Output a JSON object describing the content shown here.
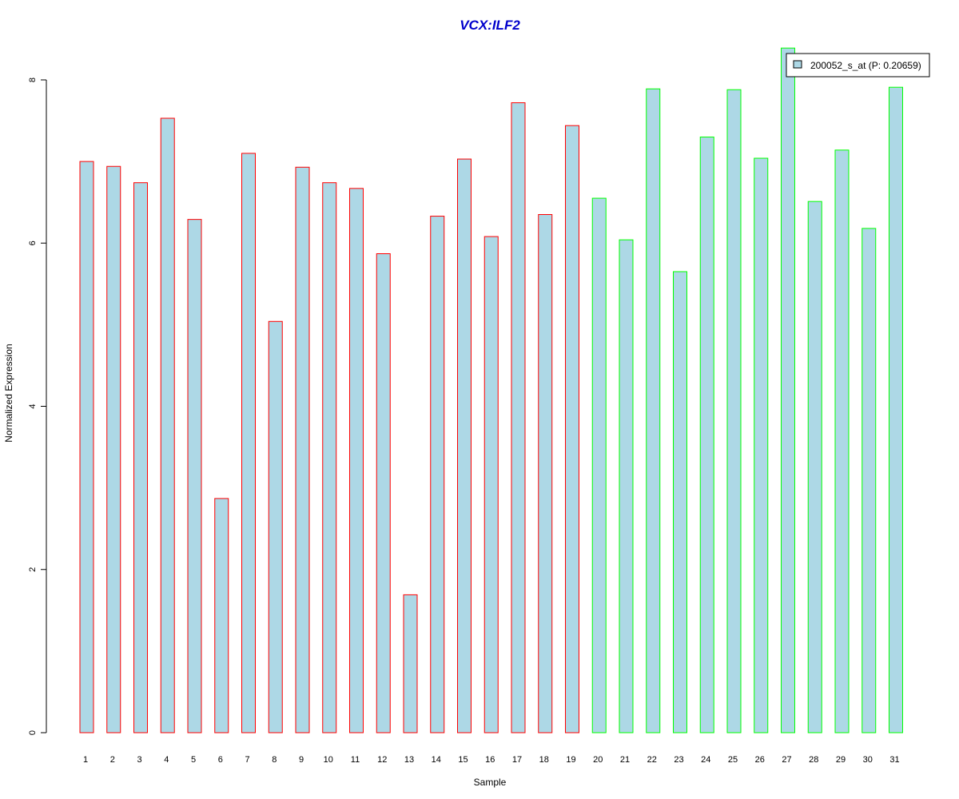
{
  "chart_data": {
    "type": "bar",
    "title": "VCX:ILF2",
    "xlabel": "Sample",
    "ylabel": "Normalized Expression",
    "ylim": [
      0,
      8.4
    ],
    "yticks": [
      0,
      2,
      4,
      6,
      8
    ],
    "categories": [
      "1",
      "2",
      "3",
      "4",
      "5",
      "6",
      "7",
      "8",
      "9",
      "10",
      "11",
      "12",
      "13",
      "14",
      "15",
      "16",
      "17",
      "18",
      "19",
      "20",
      "21",
      "22",
      "23",
      "24",
      "25",
      "26",
      "27",
      "28",
      "29",
      "30",
      "31"
    ],
    "series": [
      {
        "name": "200052_s_at (P: 0.20659)",
        "values": [
          7.0,
          6.94,
          6.74,
          7.53,
          6.29,
          2.87,
          7.1,
          5.04,
          6.93,
          6.74,
          6.67,
          5.87,
          1.69,
          6.33,
          7.03,
          6.08,
          7.72,
          6.35,
          7.44,
          6.55,
          6.04,
          7.89,
          5.65,
          7.3,
          7.88,
          7.04,
          8.39,
          6.51,
          7.14,
          6.18,
          7.91
        ]
      }
    ],
    "group_sizes": [
      19,
      12
    ],
    "grid": false,
    "legend_position": "top-right",
    "colors": {
      "title": "#0000CC",
      "bar_fill": "#ADD8E6",
      "group1_border": "#FF0000",
      "group2_border": "#00FF00",
      "axis": "#000000"
    }
  }
}
